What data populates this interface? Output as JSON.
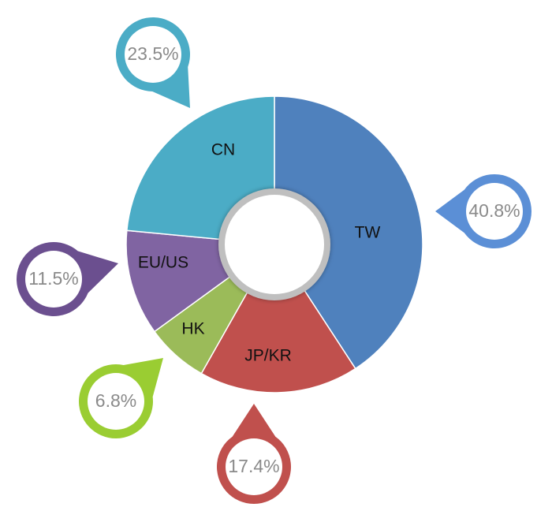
{
  "chart_data": {
    "type": "pie",
    "categories": [
      "TW",
      "JP/KR",
      "HK",
      "EU/US",
      "CN"
    ],
    "values": [
      40.8,
      17.4,
      6.8,
      11.5,
      23.5
    ],
    "value_labels": [
      "40.8%",
      "17.4%",
      "6.8%",
      "11.5%",
      "23.5%"
    ],
    "colors": [
      "#4f81bd",
      "#c0504d",
      "#9bbb59",
      "#8064a2",
      "#4bacc6"
    ],
    "marker_colors": [
      "#5b8fd6",
      "#c0504d",
      "#9acd32",
      "#6b4f8f",
      "#4bacc6"
    ],
    "style": "donut",
    "start": "top",
    "direction": "clockwise",
    "legend": "none",
    "value_labels_style": "callout-bubbles"
  }
}
